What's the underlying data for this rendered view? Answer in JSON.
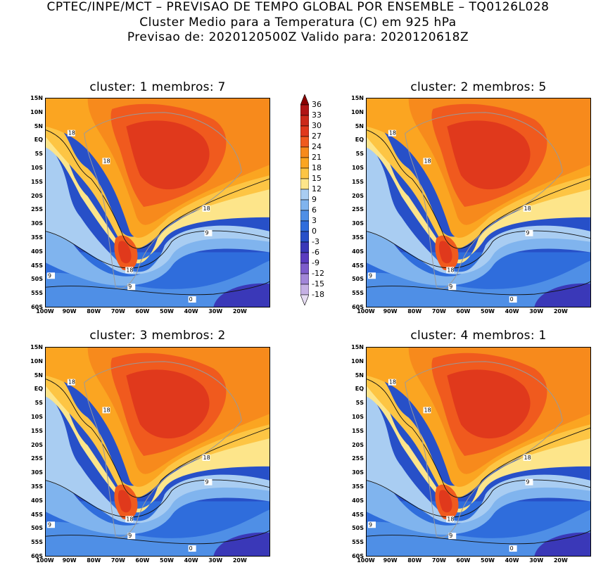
{
  "header": {
    "line1": "CPTEC/INPE/MCT – PREVISAO DE TEMPO GLOBAL POR ENSEMBLE – TQ0126L028",
    "line2": "Cluster Medio para a Temperatura (C) em 925 hPa",
    "line3": "Previsao de: 2020120500Z   Valido para: 2020120618Z"
  },
  "panels": [
    {
      "title": "cluster: 1   membros: 7"
    },
    {
      "title": "cluster: 2   membros: 5"
    },
    {
      "title": "cluster: 3   membros: 2"
    },
    {
      "title": "cluster: 4   membros: 1"
    }
  ],
  "axes": {
    "lat_ticks": [
      "15N",
      "10N",
      "5N",
      "EQ",
      "5S",
      "10S",
      "15S",
      "20S",
      "25S",
      "30S",
      "35S",
      "40S",
      "45S",
      "50S",
      "55S",
      "60S"
    ],
    "lon_ticks": [
      "100W",
      "90W",
      "80W",
      "70W",
      "60W",
      "50W",
      "40W",
      "30W",
      "20W"
    ]
  },
  "contour_labels": {
    "c18": "18",
    "c9": "9",
    "c0": "0"
  },
  "colorbar": {
    "levels": [
      "36",
      "33",
      "30",
      "27",
      "24",
      "21",
      "18",
      "15",
      "12",
      "9",
      "6",
      "3",
      "0",
      "-3",
      "-6",
      "-9",
      "-12",
      "-15",
      "-18"
    ],
    "colors": [
      "#8b0000",
      "#b01515",
      "#cc2a1a",
      "#e0391c",
      "#f05a1e",
      "#f78a1c",
      "#fba521",
      "#fdc544",
      "#fde58a",
      "#a9cdf2",
      "#80b4ee",
      "#4f8fe6",
      "#2f6ddc",
      "#2750c8",
      "#3a38b8",
      "#5a3cc0",
      "#7d5ccc",
      "#a286d8",
      "#c5b0e4"
    ]
  }
}
